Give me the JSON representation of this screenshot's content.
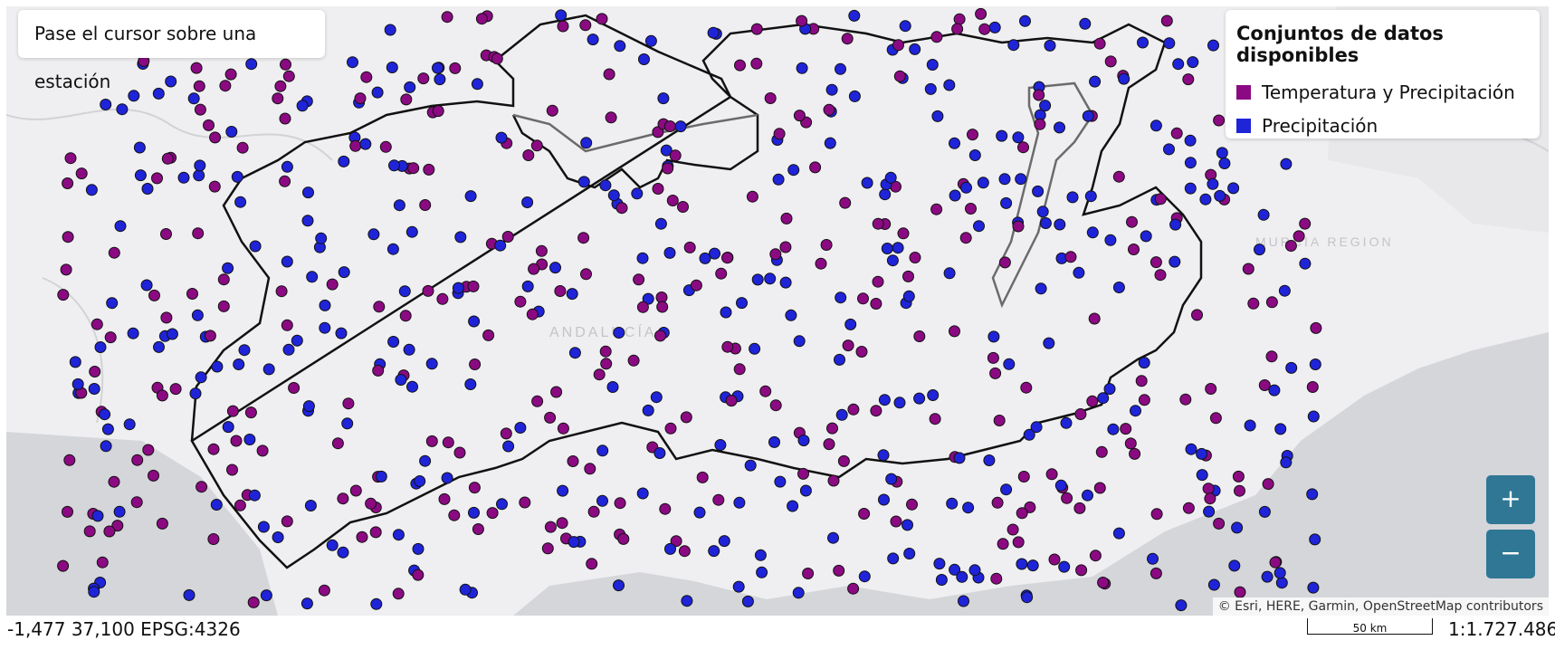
{
  "hover_prompt": "Pase el cursor sobre una estación",
  "legend": {
    "title": "Conjuntos de datos disponibles",
    "items": [
      {
        "label": "Temperatura y Precipitación",
        "color": "#8b0a82"
      },
      {
        "label": "Precipitación",
        "color": "#1f24d9"
      }
    ]
  },
  "map_labels": {
    "region_andalucia": "ANDALUCÍA",
    "region_murcia": "MURCIA REGION"
  },
  "zoom": {
    "in_label": "+",
    "out_label": "−"
  },
  "attribution": "© Esri, HERE, Garmin, OpenStreetMap contributors",
  "coordinates": "-1,477 37,100 EPSG:4326",
  "scalebar_label": "50 km",
  "scale_ratio": "1:1.727.486",
  "colors": {
    "temperature_precip": "#8b0a82",
    "precip": "#1f24d9",
    "land": "#efeff1",
    "sea": "#d5d6da",
    "zoom_button": "#2f7795"
  }
}
